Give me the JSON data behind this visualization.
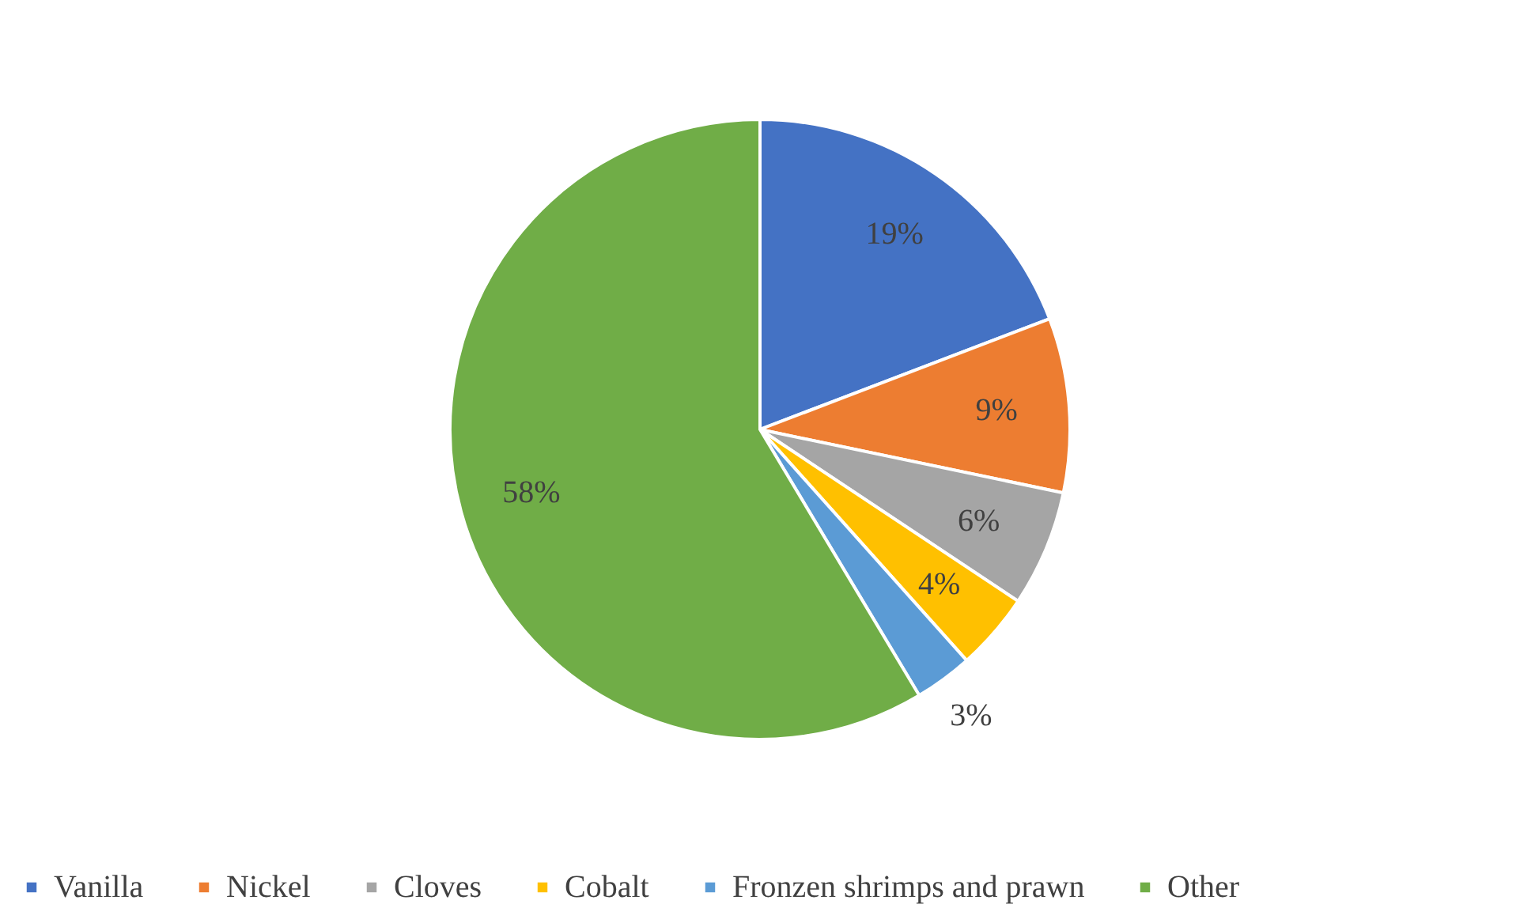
{
  "chart_data": {
    "type": "pie",
    "categories": [
      "Vanilla",
      "Nickel",
      "Cloves",
      "Cobalt",
      "Fronzen shrimps and prawn",
      "Other"
    ],
    "values": [
      19,
      9,
      6,
      4,
      3,
      58
    ],
    "colors": [
      "#4472c4",
      "#ed7d31",
      "#a5a5a5",
      "#ffc000",
      "#5b9bd5",
      "#70ad47"
    ],
    "value_labels": [
      "19%",
      "9%",
      "6%",
      "4%",
      "3%",
      "58%"
    ],
    "legend": "bottom"
  }
}
